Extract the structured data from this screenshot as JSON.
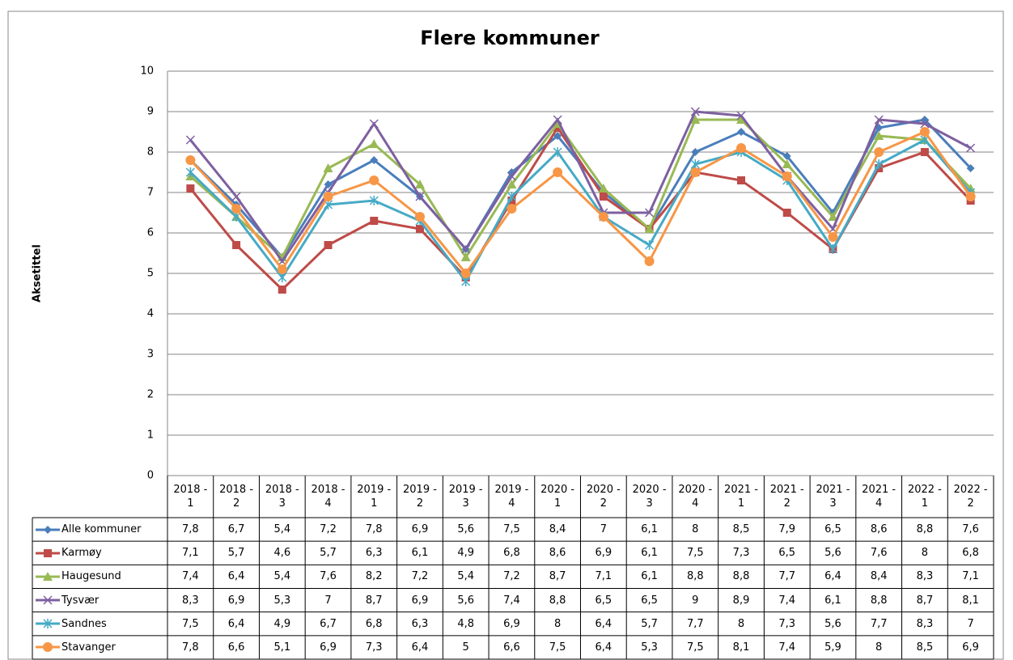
{
  "chart_data": {
    "type": "line",
    "title": "Flere kommuner",
    "y_label": "Aksetittel",
    "categories": [
      "2018 - 1",
      "2018 - 2",
      "2018 - 3",
      "2018 - 4",
      "2019 - 1",
      "2019 - 2",
      "2019 - 3",
      "2019 - 4",
      "2020 - 1",
      "2020 - 2",
      "2020 - 3",
      "2020 - 4",
      "2021 - 1",
      "2021 - 2",
      "2021 - 3",
      "2021 - 4",
      "2022 - 1",
      "2022 - 2"
    ],
    "ylim": [
      0,
      10
    ],
    "yticks": [
      0,
      1,
      2,
      3,
      4,
      5,
      6,
      7,
      8,
      9,
      10
    ],
    "grid": true,
    "series": [
      {
        "name": "Alle kommuner",
        "color": "#4a7ebb",
        "marker": "diamond",
        "values": [
          7.8,
          6.7,
          5.4,
          7.2,
          7.8,
          6.9,
          5.6,
          7.5,
          8.4,
          7,
          6.1,
          8,
          8.5,
          7.9,
          6.5,
          8.6,
          8.8,
          7.6
        ],
        "value_labels": [
          "7,8",
          "6,7",
          "5,4",
          "7,2",
          "7,8",
          "6,9",
          "5,6",
          "7,5",
          "8,4",
          "7",
          "6,1",
          "8",
          "8,5",
          "7,9",
          "6,5",
          "8,6",
          "8,8",
          "7,6"
        ]
      },
      {
        "name": "Karmøy",
        "color": "#be4b48",
        "marker": "square",
        "values": [
          7.1,
          5.7,
          4.6,
          5.7,
          6.3,
          6.1,
          4.9,
          6.8,
          8.6,
          6.9,
          6.1,
          7.5,
          7.3,
          6.5,
          5.6,
          7.6,
          8,
          6.8
        ],
        "value_labels": [
          "7,1",
          "5,7",
          "4,6",
          "5,7",
          "6,3",
          "6,1",
          "4,9",
          "6,8",
          "8,6",
          "6,9",
          "6,1",
          "7,5",
          "7,3",
          "6,5",
          "5,6",
          "7,6",
          "8",
          "6,8"
        ]
      },
      {
        "name": "Haugesund",
        "color": "#98b954",
        "marker": "triangle",
        "values": [
          7.4,
          6.4,
          5.4,
          7.6,
          8.2,
          7.2,
          5.4,
          7.2,
          8.7,
          7.1,
          6.1,
          8.8,
          8.8,
          7.7,
          6.4,
          8.4,
          8.3,
          7.1
        ],
        "value_labels": [
          "7,4",
          "6,4",
          "5,4",
          "7,6",
          "8,2",
          "7,2",
          "5,4",
          "7,2",
          "8,7",
          "7,1",
          "6,1",
          "8,8",
          "8,8",
          "7,7",
          "6,4",
          "8,4",
          "8,3",
          "7,1"
        ]
      },
      {
        "name": "Tysvær",
        "color": "#7d60a0",
        "marker": "x",
        "values": [
          8.3,
          6.9,
          5.3,
          7,
          8.7,
          6.9,
          5.6,
          7.4,
          8.8,
          6.5,
          6.5,
          9,
          8.9,
          7.4,
          6.1,
          8.8,
          8.7,
          8.1
        ],
        "value_labels": [
          "8,3",
          "6,9",
          "5,3",
          "7",
          "8,7",
          "6,9",
          "5,6",
          "7,4",
          "8,8",
          "6,5",
          "6,5",
          "9",
          "8,9",
          "7,4",
          "6,1",
          "8,8",
          "8,7",
          "8,1"
        ]
      },
      {
        "name": "Sandnes",
        "color": "#46aac5",
        "marker": "star",
        "values": [
          7.5,
          6.4,
          4.9,
          6.7,
          6.8,
          6.3,
          4.8,
          6.9,
          8,
          6.4,
          5.7,
          7.7,
          8,
          7.3,
          5.6,
          7.7,
          8.3,
          7
        ],
        "value_labels": [
          "7,5",
          "6,4",
          "4,9",
          "6,7",
          "6,8",
          "6,3",
          "4,8",
          "6,9",
          "8",
          "6,4",
          "5,7",
          "7,7",
          "8",
          "7,3",
          "5,6",
          "7,7",
          "8,3",
          "7"
        ]
      },
      {
        "name": "Stavanger",
        "color": "#f79646",
        "marker": "circle",
        "values": [
          7.8,
          6.6,
          5.1,
          6.9,
          7.3,
          6.4,
          5,
          6.6,
          7.5,
          6.4,
          5.3,
          7.5,
          8.1,
          7.4,
          5.9,
          8,
          8.5,
          6.9
        ],
        "value_labels": [
          "7,8",
          "6,6",
          "5,1",
          "6,9",
          "7,3",
          "6,4",
          "5",
          "6,6",
          "7,5",
          "6,4",
          "5,3",
          "7,5",
          "8,1",
          "7,4",
          "5,9",
          "8",
          "8,5",
          "6,9"
        ]
      }
    ]
  }
}
